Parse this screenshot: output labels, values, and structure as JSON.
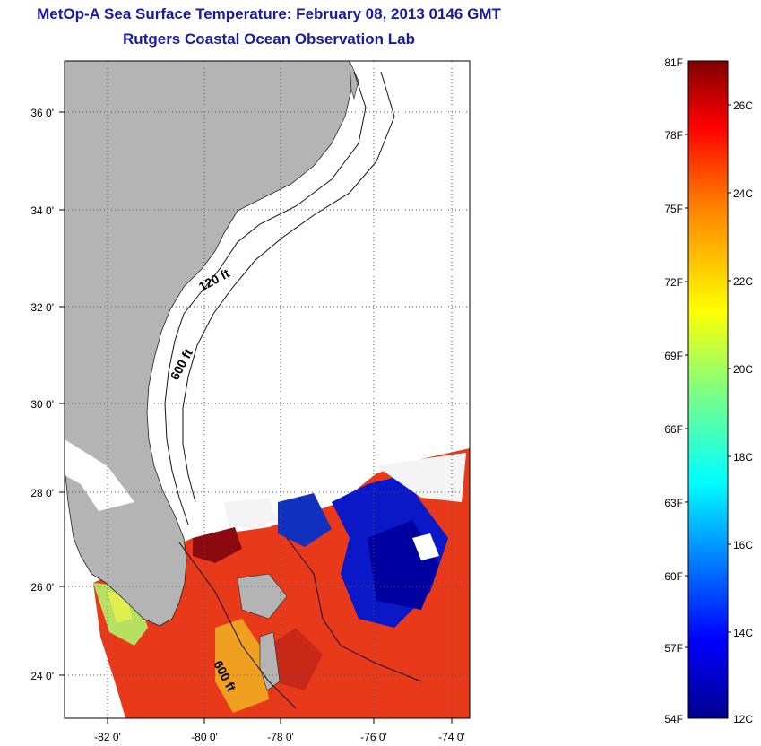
{
  "header": {
    "title": "MetOp-A Sea Surface Temperature:  February 08, 2013 0146 GMT",
    "subtitle": "Rutgers Coastal Ocean Observation Lab"
  },
  "map": {
    "lon_ticks": [
      "-82 0'",
      "-80 0'",
      "-78 0'",
      "-76 0'",
      "-74 0'"
    ],
    "lat_ticks": [
      "36 0'",
      "34 0'",
      "32 0'",
      "30 0'",
      "28 0'",
      "26 0'",
      "24 0'"
    ],
    "contour_labels": [
      "120 ft",
      "600 ft",
      "600 ft"
    ],
    "colors": {
      "land": "#b4b4b4",
      "grid": "#555555"
    }
  },
  "colorbar": {
    "f_labels": [
      "81F",
      "78F",
      "75F",
      "72F",
      "69F",
      "66F",
      "63F",
      "60F",
      "57F",
      "54F"
    ],
    "c_labels": [
      "26C",
      "24C",
      "22C",
      "20C",
      "18C",
      "16C",
      "14C",
      "12C"
    ],
    "colors": [
      "#00008f",
      "#0000ff",
      "#0080ff",
      "#00ffff",
      "#80ff80",
      "#ffff00",
      "#ff8000",
      "#ff0000",
      "#800000"
    ]
  }
}
